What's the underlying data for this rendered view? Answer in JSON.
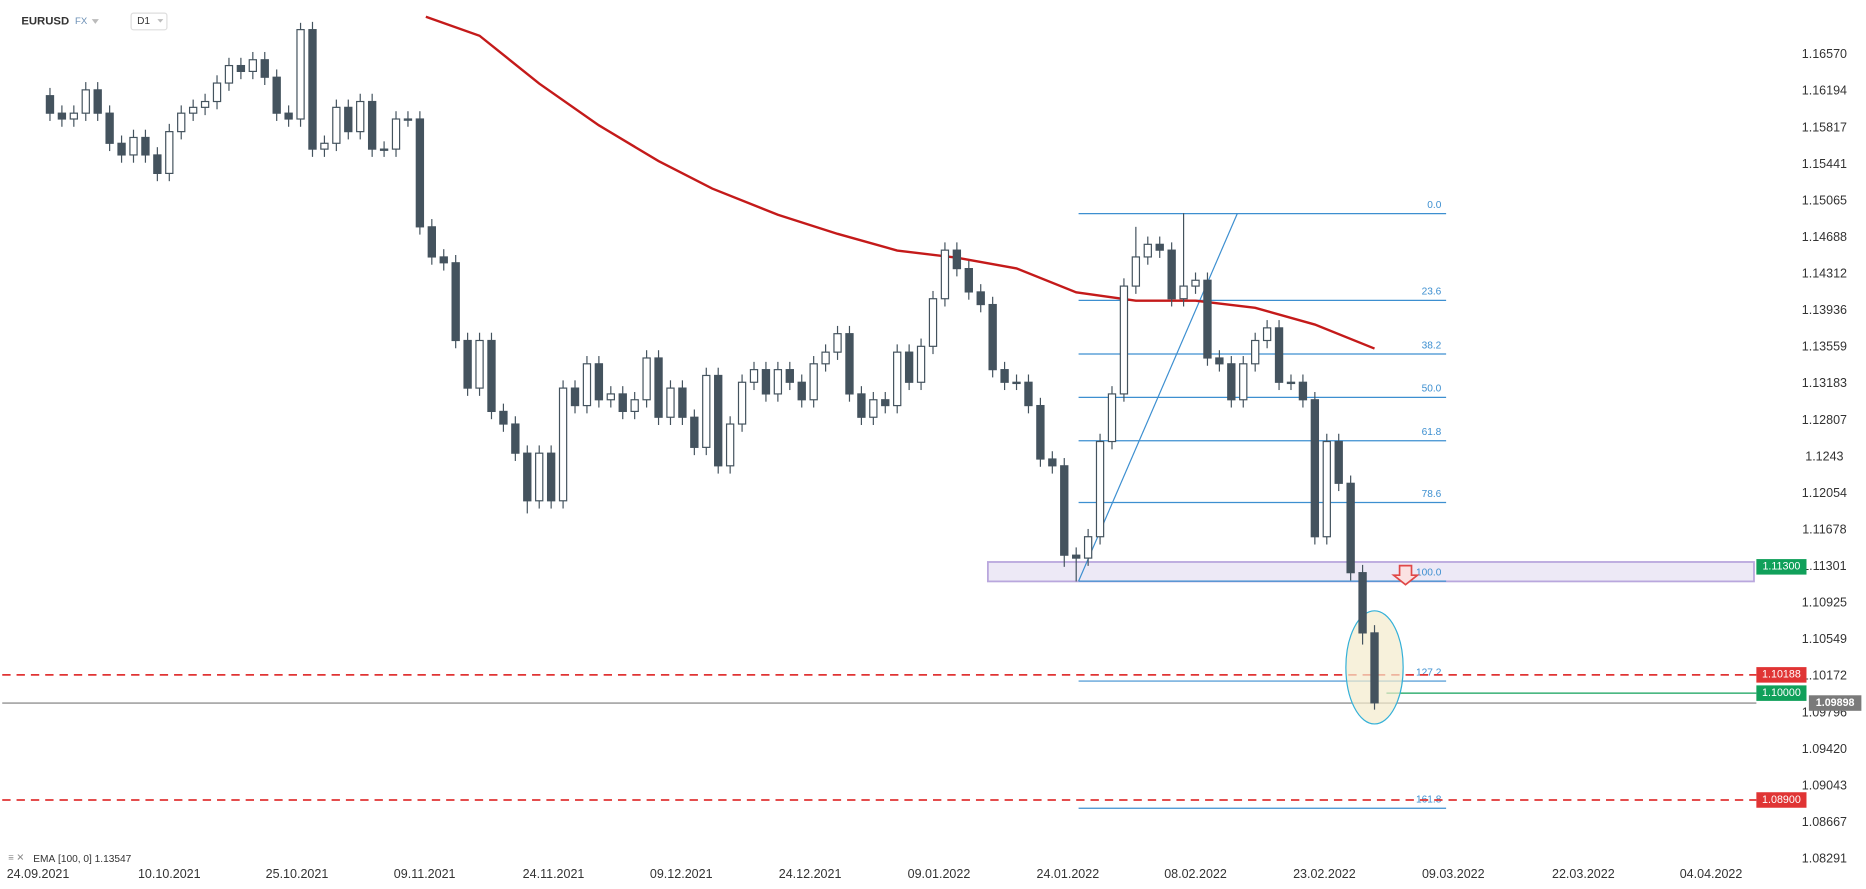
{
  "chart_data": {
    "type": "candlestick",
    "symbol": "EURUSD",
    "market": "FX",
    "interval": "D1",
    "up_color": "#ffffff",
    "down_color": "#44535e",
    "xlim": [
      -4,
      142
    ],
    "ylim": [
      1.08168,
      1.17135
    ],
    "xticks": [
      {
        "value": -1,
        "label": "24.09.2021"
      },
      {
        "value": 10,
        "label": "10.10.2021"
      },
      {
        "value": 20.7,
        "label": "25.10.2021"
      },
      {
        "value": 31.4,
        "label": "09.11.2021"
      },
      {
        "value": 42.2,
        "label": "24.11.2021"
      },
      {
        "value": 52.9,
        "label": "09.12.2021"
      },
      {
        "value": 63.7,
        "label": "24.12.2021"
      },
      {
        "value": 74.5,
        "label": "09.01.2022"
      },
      {
        "value": 85.3,
        "label": "24.01.2022"
      },
      {
        "value": 96,
        "label": "08.02.2022"
      },
      {
        "value": 106.8,
        "label": "23.02.2022"
      },
      {
        "value": 117.6,
        "label": "09.03.2022"
      },
      {
        "value": 128.5,
        "label": "22.03.2022"
      },
      {
        "value": 139.2,
        "label": "04.04.2022"
      }
    ],
    "yticks": [
      {
        "value": 1.1657,
        "label": "1.16570"
      },
      1.16194,
      1.15817,
      1.15441,
      1.15065,
      1.14688,
      1.14312,
      1.13936,
      1.13559,
      1.13183,
      1.12807,
      1.1243,
      1.12054,
      1.11678,
      1.11301,
      1.10925,
      1.10549,
      1.10172,
      1.09796,
      {
        "value": 1.0942,
        "label": "1.09420"
      },
      1.09043,
      1.08667,
      1.08291
    ],
    "open": [
      1.1615,
      1.1597,
      1.1591,
      1.1597,
      1.1621,
      1.1597,
      1.1566,
      1.1554,
      1.1572,
      1.1554,
      1.1535,
      1.1578,
      1.1597,
      1.1603,
      1.1609,
      1.1628,
      1.1646,
      1.164,
      1.1652,
      1.1634,
      1.1597,
      1.1591,
      1.1683,
      1.156,
      1.1566,
      1.1603,
      1.1578,
      1.1609,
      1.156,
      1.156,
      1.1591,
      1.1591,
      1.148,
      1.1449,
      1.1443,
      1.1363,
      1.1314,
      1.1363,
      1.129,
      1.1277,
      1.1247,
      1.1198,
      1.1247,
      1.1198,
      1.1314,
      1.1296,
      1.1339,
      1.1302,
      1.1308,
      1.129,
      1.1302,
      1.1345,
      1.1284,
      1.1314,
      1.1284,
      1.1253,
      1.1327,
      1.1234,
      1.1277,
      1.132,
      1.1333,
      1.1308,
      1.1333,
      1.132,
      1.1302,
      1.1339,
      1.1351,
      1.137,
      1.1308,
      1.1284,
      1.1302,
      1.1296,
      1.1351,
      1.132,
      1.1357,
      1.1406,
      1.1456,
      1.1437,
      1.1413,
      1.14,
      1.1333,
      1.132,
      1.132,
      1.1296,
      1.1241,
      1.1234,
      1.1142,
      1.1139,
      1.1161,
      1.1259,
      1.1308,
      1.1419,
      1.1449,
      1.1462,
      1.1456,
      1.1406,
      1.1419,
      1.1425,
      1.1345,
      1.1339,
      1.1302,
      1.1339,
      1.1363,
      1.1376,
      1.132,
      1.132,
      1.1302,
      1.1161,
      1.1259,
      1.1216,
      1.1124,
      1.1062
    ],
    "high": [
      1.1623,
      1.1605,
      1.1605,
      1.1629,
      1.1629,
      1.1605,
      1.1574,
      1.158,
      1.158,
      1.1562,
      1.1586,
      1.1605,
      1.1611,
      1.1617,
      1.1636,
      1.1654,
      1.1654,
      1.166,
      1.166,
      1.1642,
      1.1605,
      1.169,
      1.1691,
      1.1574,
      1.1611,
      1.1611,
      1.1617,
      1.1617,
      1.1568,
      1.1599,
      1.1599,
      1.1599,
      1.1488,
      1.1457,
      1.1451,
      1.1371,
      1.1371,
      1.1371,
      1.1298,
      1.1285,
      1.1255,
      1.1255,
      1.1255,
      1.1322,
      1.1322,
      1.1347,
      1.1347,
      1.1316,
      1.1316,
      1.131,
      1.1353,
      1.1353,
      1.1322,
      1.1322,
      1.1292,
      1.1335,
      1.1335,
      1.1285,
      1.1328,
      1.1341,
      1.1341,
      1.1341,
      1.1341,
      1.1328,
      1.1347,
      1.1359,
      1.1378,
      1.1378,
      1.1316,
      1.131,
      1.131,
      1.1359,
      1.1359,
      1.1365,
      1.1414,
      1.1464,
      1.1464,
      1.1445,
      1.1421,
      1.1408,
      1.1341,
      1.1328,
      1.1328,
      1.1304,
      1.1249,
      1.1242,
      1.115,
      1.1169,
      1.1267,
      1.1316,
      1.1427,
      1.148,
      1.147,
      1.147,
      1.1464,
      1.1494,
      1.1433,
      1.1433,
      1.1353,
      1.1347,
      1.1347,
      1.1371,
      1.1384,
      1.1384,
      1.1328,
      1.1328,
      1.131,
      1.1267,
      1.1267,
      1.1224,
      1.1132,
      1.107
    ],
    "low": [
      1.1589,
      1.1583,
      1.1583,
      1.1589,
      1.1589,
      1.1558,
      1.1546,
      1.1546,
      1.1546,
      1.1527,
      1.1527,
      1.157,
      1.1589,
      1.1595,
      1.1601,
      1.162,
      1.1632,
      1.1632,
      1.1626,
      1.1589,
      1.1583,
      1.1583,
      1.1552,
      1.1552,
      1.1558,
      1.157,
      1.157,
      1.1552,
      1.1552,
      1.1552,
      1.1583,
      1.1472,
      1.1441,
      1.1435,
      1.1355,
      1.1306,
      1.1306,
      1.1282,
      1.1269,
      1.1239,
      1.1185,
      1.119,
      1.119,
      1.119,
      1.1288,
      1.1288,
      1.1294,
      1.1294,
      1.1282,
      1.1282,
      1.1294,
      1.1276,
      1.1276,
      1.1276,
      1.1245,
      1.1245,
      1.1226,
      1.1226,
      1.1269,
      1.1312,
      1.13,
      1.13,
      1.1312,
      1.1294,
      1.1294,
      1.1331,
      1.1343,
      1.13,
      1.1276,
      1.1276,
      1.1288,
      1.1288,
      1.1312,
      1.1312,
      1.1349,
      1.1398,
      1.1429,
      1.1405,
      1.1392,
      1.1325,
      1.1312,
      1.1312,
      1.1288,
      1.1233,
      1.1226,
      1.113,
      1.1115,
      1.1131,
      1.1153,
      1.1251,
      1.13,
      1.1411,
      1.1441,
      1.1448,
      1.1398,
      1.1398,
      1.1411,
      1.1337,
      1.1331,
      1.1294,
      1.1294,
      1.1331,
      1.1355,
      1.1312,
      1.1312,
      1.1294,
      1.1153,
      1.1153,
      1.1208,
      1.1116,
      1.105,
      1.0983
    ],
    "close": [
      1.1597,
      1.1591,
      1.1597,
      1.1621,
      1.1597,
      1.1566,
      1.1554,
      1.1572,
      1.1554,
      1.1535,
      1.1578,
      1.1597,
      1.1603,
      1.1609,
      1.1628,
      1.1646,
      1.164,
      1.1652,
      1.1634,
      1.1597,
      1.1591,
      1.1683,
      1.156,
      1.1566,
      1.1603,
      1.1578,
      1.1609,
      1.156,
      1.156,
      1.1591,
      1.1591,
      1.148,
      1.1449,
      1.1443,
      1.1363,
      1.1314,
      1.1363,
      1.129,
      1.1277,
      1.1247,
      1.1198,
      1.1247,
      1.1198,
      1.1314,
      1.1296,
      1.1339,
      1.1302,
      1.1308,
      1.129,
      1.1302,
      1.1345,
      1.1284,
      1.1314,
      1.1284,
      1.1253,
      1.1327,
      1.1234,
      1.1277,
      1.132,
      1.1333,
      1.1308,
      1.1333,
      1.132,
      1.1302,
      1.1339,
      1.1351,
      1.137,
      1.1308,
      1.1284,
      1.1302,
      1.1296,
      1.1351,
      1.132,
      1.1357,
      1.1406,
      1.1456,
      1.1437,
      1.1413,
      1.14,
      1.1333,
      1.132,
      1.132,
      1.1296,
      1.1241,
      1.1234,
      1.1142,
      1.1139,
      1.1161,
      1.1259,
      1.1308,
      1.1419,
      1.1449,
      1.1462,
      1.1456,
      1.1406,
      1.1419,
      1.1425,
      1.1345,
      1.1339,
      1.1302,
      1.1339,
      1.1363,
      1.1376,
      1.132,
      1.132,
      1.1302,
      1.1161,
      1.1259,
      1.1216,
      1.1124,
      1.1062,
      1.099
    ],
    "ema": {
      "name": "EMA",
      "params": "[100, 0]",
      "last": 1.13547,
      "color": "#c41a1a",
      "x": [
        31.5,
        36,
        41,
        46,
        51,
        55.5,
        61,
        66,
        71,
        76,
        81,
        86,
        91,
        96,
        101,
        106,
        111
      ],
      "values": [
        1.16963,
        1.16767,
        1.16275,
        1.15845,
        1.15477,
        1.15194,
        1.14924,
        1.14728,
        1.14556,
        1.14482,
        1.14372,
        1.14126,
        1.1404,
        1.1404,
        1.13966,
        1.13794,
        1.13547
      ]
    },
    "fibonacci": {
      "high": 1.14936,
      "low": 1.11153,
      "start_x": 86.2,
      "end_x": 117,
      "trend_start_x": 86.2,
      "trend_end_x": 99.5,
      "color": "#3d8fd0",
      "levels": [
        {
          "value": 0,
          "label": "0.0"
        },
        23.6,
        38.2,
        {
          "value": 50,
          "label": "50.0"
        },
        61.8,
        78.6,
        {
          "value": 100,
          "label": "100.0"
        },
        127.2,
        161.8
      ]
    },
    "zone": {
      "from": 1.1115,
      "to": 1.1135,
      "start_x": 78.6,
      "color": "#b9a7dd"
    },
    "price_lines": [
      {
        "value": 1.113,
        "label": "1.11300",
        "color": "#10a05a",
        "line": "none"
      },
      {
        "value": 1.10188,
        "label": "1.10188",
        "color": "#e03434",
        "line": "dashed"
      },
      {
        "value": 1.1,
        "label": "1.10000",
        "color": "#10a05a",
        "line": "solid",
        "start_x": 112
      },
      {
        "value": 1.09898,
        "label": "1.09898",
        "color": "#7a7a7a",
        "line": "solid"
      },
      {
        "value": 1.089,
        "label": "1.08900",
        "color": "#e03434",
        "line": "dashed"
      }
    ]
  }
}
